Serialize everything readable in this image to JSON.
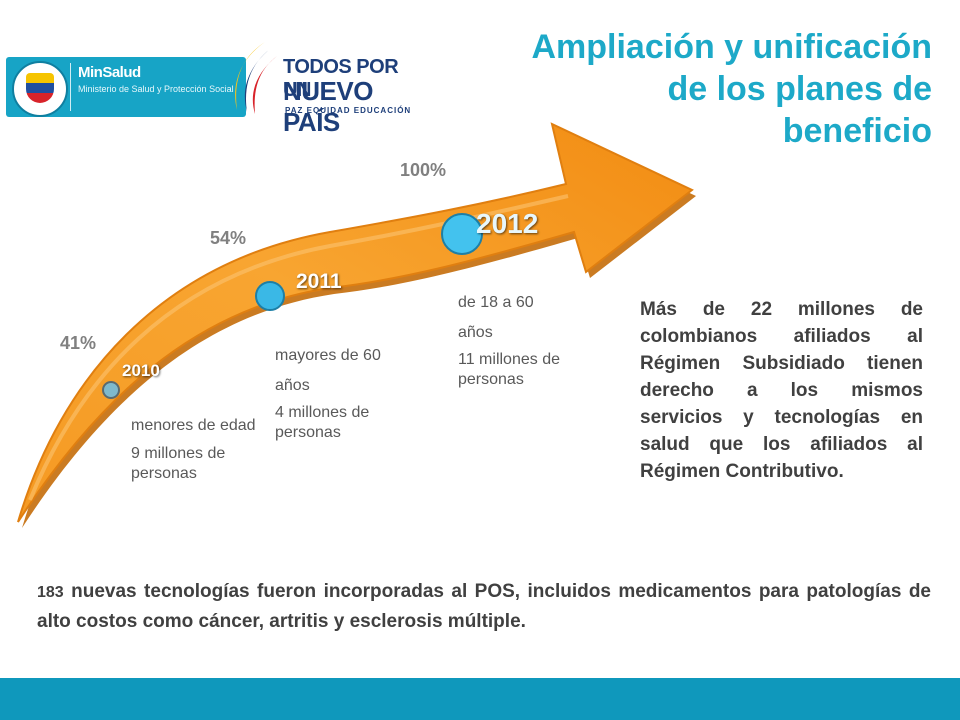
{
  "header": {
    "minsalud": {
      "seal_text": "REPÚBLICA DE COLOMBIA",
      "name": "MinSalud",
      "subtitle": "Ministerio de Salud y Protección Social"
    },
    "campaign_logo": {
      "line1": "TODOS POR UN",
      "line2": "NUEVO PAÍS",
      "tagline": "PAZ  EQUIDAD  EDUCACIÓN"
    },
    "title_lines": [
      "Ampliación y unificación",
      "de los planes de",
      "beneficio"
    ]
  },
  "timeline": [
    {
      "year": "2010",
      "percent": "41%",
      "group": "menores de edad",
      "people": "9 millones de personas"
    },
    {
      "year": "2011",
      "percent": "54%",
      "group": "mayores de 60 años",
      "people": "4 millones de personas"
    },
    {
      "year": "2012",
      "percent": "100%",
      "group": "de 18 a 60 años",
      "people": "11 millones de personas"
    }
  ],
  "side_text": "Más de 22 millones de colombianos afiliados al Régimen Subsidiado tienen derecho a los mismos servicios y tecnologías en salud que los afiliados al Régimen Contributivo.",
  "bottom": {
    "number": "183",
    "text": "nuevas tecnologías fueron incorporadas al POS, incluidos medicamentos para patologías de alto costos como cáncer, artritis y esclerosis múltiple."
  },
  "colors": {
    "title": "#1da9c8",
    "arrow": "#f7941d",
    "footer": "#0f98bc"
  }
}
